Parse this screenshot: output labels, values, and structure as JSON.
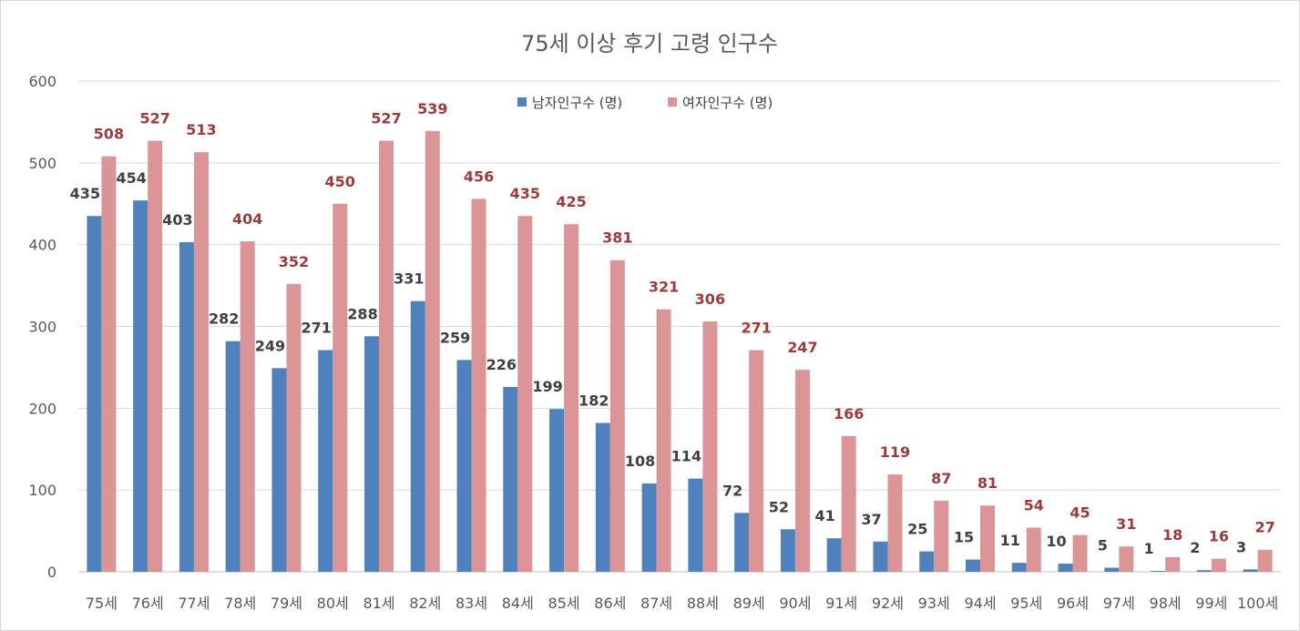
{
  "chart_data": {
    "type": "bar",
    "title": "75세 이상 후기 고령 인구수",
    "xlabel": "",
    "ylabel": "",
    "ylim": [
      0,
      600
    ],
    "yticks": [
      0,
      100,
      200,
      300,
      400,
      500,
      600
    ],
    "grid": true,
    "legend_position": "top-center",
    "categories": [
      "75세",
      "76세",
      "77세",
      "78세",
      "79세",
      "80세",
      "81세",
      "82세",
      "83세",
      "84세",
      "85세",
      "86세",
      "87세",
      "88세",
      "89세",
      "90세",
      "91세",
      "92세",
      "93세",
      "94세",
      "95세",
      "96세",
      "97세",
      "98세",
      "99세",
      "100세"
    ],
    "series": [
      {
        "name": "남자인구수 (명)",
        "color": "#4f81bd",
        "label_color": "#404040",
        "values": [
          435,
          454,
          403,
          282,
          249,
          271,
          288,
          331,
          259,
          226,
          199,
          182,
          108,
          114,
          72,
          52,
          41,
          37,
          25,
          15,
          11,
          10,
          5,
          1,
          2,
          3
        ]
      },
      {
        "name": "여자인구수 (명)",
        "color": "#dc9596",
        "label_color": "#9e3a3a",
        "values": [
          508,
          527,
          513,
          404,
          352,
          450,
          527,
          539,
          456,
          435,
          425,
          381,
          321,
          306,
          271,
          247,
          166,
          119,
          87,
          81,
          54,
          45,
          31,
          18,
          16,
          27
        ]
      }
    ]
  }
}
